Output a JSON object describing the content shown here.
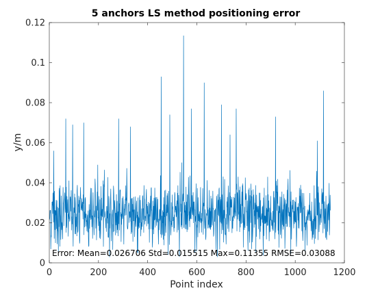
{
  "chart_data": {
    "type": "line",
    "title": "5 anchors LS method positioning error",
    "xlabel": "Point index",
    "ylabel": "y/m",
    "xlim": [
      0,
      1200
    ],
    "ylim": [
      0,
      0.12
    ],
    "xticks": [
      0,
      200,
      400,
      600,
      800,
      1000,
      1200
    ],
    "yticks": [
      0,
      0.02,
      0.04,
      0.06,
      0.08,
      0.1,
      0.12
    ],
    "xtick_labels": [
      "0",
      "200",
      "400",
      "600",
      "800",
      "1000",
      "1200"
    ],
    "ytick_labels": [
      "0",
      "0.02",
      "0.04",
      "0.06",
      "0.08",
      "0.1",
      "0.12"
    ],
    "grid": false,
    "legend": "none",
    "series_color": "#0072BD",
    "annotation": "Error: Mean=0.026706 Std=0.015515 Max=0.11355 RMSE=0.03088",
    "series": [
      {
        "x_start": 1,
        "x_step": 1,
        "values_note_count": 1143,
        "summary": {
          "mean": 0.026706,
          "std": 0.015515,
          "max": 0.11355,
          "rmse": 0.03088
        },
        "peaks": [
          {
            "x": 18,
            "y": 0.056
          },
          {
            "x": 67,
            "y": 0.072
          },
          {
            "x": 95,
            "y": 0.069
          },
          {
            "x": 140,
            "y": 0.07
          },
          {
            "x": 282,
            "y": 0.072
          },
          {
            "x": 330,
            "y": 0.068
          },
          {
            "x": 455,
            "y": 0.093
          },
          {
            "x": 490,
            "y": 0.074
          },
          {
            "x": 546,
            "y": 0.1135
          },
          {
            "x": 578,
            "y": 0.077
          },
          {
            "x": 630,
            "y": 0.09
          },
          {
            "x": 700,
            "y": 0.079
          },
          {
            "x": 735,
            "y": 0.064
          },
          {
            "x": 760,
            "y": 0.077
          },
          {
            "x": 920,
            "y": 0.073
          },
          {
            "x": 1090,
            "y": 0.061
          },
          {
            "x": 1115,
            "y": 0.086
          }
        ]
      }
    ]
  }
}
